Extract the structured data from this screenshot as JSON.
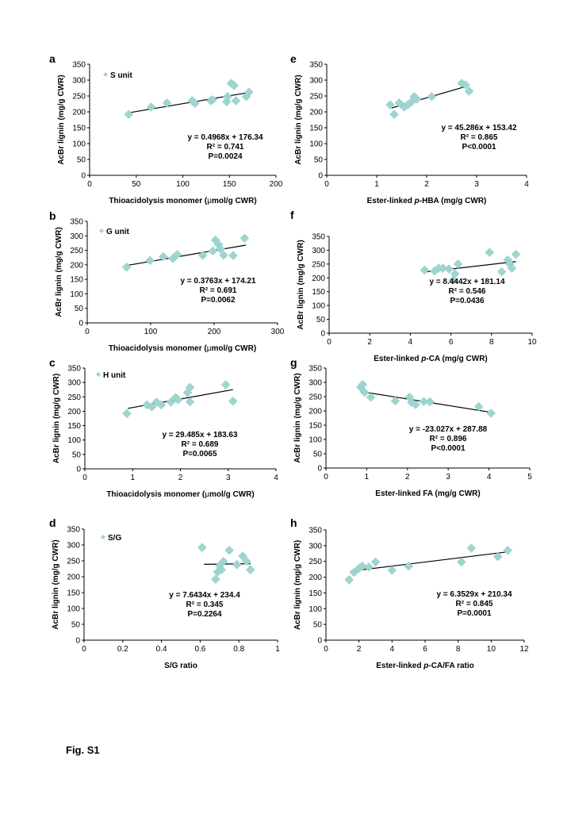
{
  "figure_label": "Fig. S1",
  "chart_data": [
    {
      "panel": "a",
      "type": "scatter",
      "legend": "S unit",
      "xlabel": [
        "Thioacidolysis monomer (",
        "μ",
        "mol/g CWR)"
      ],
      "ylabel": "AcBr lignin (mg/g CWR)",
      "xlim": [
        0,
        200
      ],
      "xticks": [
        "0",
        "50",
        "100",
        "150",
        "200"
      ],
      "ylim": [
        0,
        350
      ],
      "yticks": [
        "0",
        "50",
        "100",
        "150",
        "200",
        "250",
        "300",
        "350"
      ],
      "equation": [
        "y = 0.4968x + 176.34",
        "R² = 0.741",
        "P=0.0024"
      ],
      "trendline": [
        [
          42,
          197
        ],
        [
          173,
          262
        ]
      ],
      "points": [
        [
          42,
          192
        ],
        [
          66,
          215
        ],
        [
          83,
          228
        ],
        [
          110,
          235
        ],
        [
          113,
          227
        ],
        [
          130,
          235
        ],
        [
          132,
          238
        ],
        [
          147,
          232
        ],
        [
          148,
          248
        ],
        [
          152,
          290
        ],
        [
          155,
          283
        ],
        [
          157,
          235
        ],
        [
          168,
          248
        ],
        [
          171,
          262
        ]
      ]
    },
    {
      "panel": "b",
      "type": "scatter",
      "legend": "G unit",
      "xlabel": [
        "Thioacidolysis monomer (",
        "μ",
        "mol/g CWR)"
      ],
      "ylabel": "AcBr lignin (mg/g CWR)",
      "xlim": [
        0,
        300
      ],
      "xticks": [
        "0",
        "100",
        "200",
        "300"
      ],
      "ylim": [
        0,
        350
      ],
      "yticks": [
        "0",
        "50",
        "100",
        "150",
        "200",
        "250",
        "300",
        "350"
      ],
      "equation": [
        "y = 0.3763x + 174.21",
        "R² = 0.691",
        "P=0.0062"
      ],
      "trendline": [
        [
          63,
          198
        ],
        [
          250,
          268
        ]
      ],
      "points": [
        [
          62,
          192
        ],
        [
          99,
          215
        ],
        [
          120,
          228
        ],
        [
          135,
          222
        ],
        [
          142,
          235
        ],
        [
          182,
          233
        ],
        [
          198,
          248
        ],
        [
          202,
          285
        ],
        [
          207,
          270
        ],
        [
          210,
          255
        ],
        [
          215,
          233
        ],
        [
          230,
          232
        ],
        [
          248,
          292
        ]
      ]
    },
    {
      "panel": "c",
      "type": "scatter",
      "legend": "H unit",
      "xlabel": [
        "Thioacidolysis monomer (",
        "μ",
        "mol/g CWR)"
      ],
      "ylabel": "AcBr lignin (mg/g CWR)",
      "xlim": [
        0,
        4
      ],
      "xticks": [
        "0",
        "1",
        "2",
        "3",
        "4"
      ],
      "ylim": [
        0,
        350
      ],
      "yticks": [
        "0",
        "50",
        "100",
        "150",
        "200",
        "250",
        "300",
        "350"
      ],
      "equation": [
        "y = 29.485x + 183.63",
        "R² = 0.689",
        "P=0.0065"
      ],
      "trendline": [
        [
          0.9,
          210
        ],
        [
          3.1,
          275
        ]
      ],
      "points": [
        [
          0.88,
          192
        ],
        [
          1.3,
          222
        ],
        [
          1.4,
          215
        ],
        [
          1.5,
          232
        ],
        [
          1.6,
          222
        ],
        [
          1.8,
          232
        ],
        [
          1.9,
          248
        ],
        [
          1.95,
          240
        ],
        [
          2.15,
          265
        ],
        [
          2.2,
          283
        ],
        [
          2.2,
          233
        ],
        [
          2.95,
          292
        ],
        [
          3.1,
          235
        ]
      ]
    },
    {
      "panel": "d",
      "type": "scatter",
      "legend": "S/G",
      "xlabel": [
        "S/G ratio"
      ],
      "ylabel": "AcBr lignin (mg/g CWR)",
      "xlim": [
        0,
        1
      ],
      "xticks": [
        "0",
        "0.2",
        "0.4",
        "0.6",
        "0.8",
        "1"
      ],
      "ylim": [
        0,
        350
      ],
      "yticks": [
        "0",
        "50",
        "100",
        "150",
        "200",
        "250",
        "300",
        "350"
      ],
      "equation": [
        "y = 7.6434x + 234.4",
        "R² = 0.345",
        "P=0.2264"
      ],
      "trendline": [
        [
          0.62,
          239
        ],
        [
          0.86,
          241
        ]
      ],
      "points": [
        [
          0.61,
          292
        ],
        [
          0.68,
          192
        ],
        [
          0.69,
          215
        ],
        [
          0.7,
          235
        ],
        [
          0.71,
          222
        ],
        [
          0.72,
          248
        ],
        [
          0.75,
          283
        ],
        [
          0.79,
          238
        ],
        [
          0.82,
          265
        ],
        [
          0.84,
          248
        ],
        [
          0.86,
          222
        ]
      ]
    },
    {
      "panel": "e",
      "type": "scatter",
      "xlabel": [
        "Ester-linked ",
        "p",
        "-HBA (mg/g CWR)"
      ],
      "ylabel": "AcBr lignin (mg/g CWR)",
      "xlim": [
        0,
        4
      ],
      "xticks": [
        "0",
        "1",
        "2",
        "3",
        "4"
      ],
      "ylim": [
        0,
        350
      ],
      "yticks": [
        "0",
        "50",
        "100",
        "150",
        "200",
        "250",
        "300",
        "350"
      ],
      "equation": [
        "y = 45.286x + 153.42",
        "R² = 0.865",
        "P<0.0001"
      ],
      "trendline": [
        [
          1.3,
          212
        ],
        [
          2.85,
          283
        ]
      ],
      "points": [
        [
          1.27,
          222
        ],
        [
          1.35,
          192
        ],
        [
          1.45,
          228
        ],
        [
          1.55,
          215
        ],
        [
          1.62,
          222
        ],
        [
          1.7,
          232
        ],
        [
          1.75,
          248
        ],
        [
          1.8,
          240
        ],
        [
          2.1,
          248
        ],
        [
          2.7,
          290
        ],
        [
          2.78,
          285
        ],
        [
          2.85,
          265
        ]
      ]
    },
    {
      "panel": "f",
      "type": "scatter",
      "xlabel": [
        "Ester-linked  ",
        "p",
        "-CA (mg/g CWR)"
      ],
      "ylabel": "AcBr lignin (mg/g CWR)",
      "xlim": [
        0,
        10
      ],
      "xticks": [
        "0",
        "2",
        "4",
        "6",
        "8",
        "10"
      ],
      "ylim": [
        0,
        350
      ],
      "yticks": [
        "0",
        "50",
        "100",
        "150",
        "200",
        "250",
        "300",
        "350"
      ],
      "equation": [
        "y = 8.4442x + 181.14",
        "R² = 0.546",
        "P=0.0436"
      ],
      "trendline": [
        [
          4.7,
          221
        ],
        [
          9.2,
          259
        ]
      ],
      "points": [
        [
          4.7,
          228
        ],
        [
          5.2,
          225
        ],
        [
          5.4,
          235
        ],
        [
          5.6,
          235
        ],
        [
          5.9,
          232
        ],
        [
          6.1,
          192
        ],
        [
          6.2,
          215
        ],
        [
          6.35,
          250
        ],
        [
          7.9,
          292
        ],
        [
          8.5,
          222
        ],
        [
          8.8,
          265
        ],
        [
          8.9,
          250
        ],
        [
          9.0,
          235
        ],
        [
          9.2,
          285
        ]
      ]
    },
    {
      "panel": "g",
      "type": "scatter",
      "xlabel": [
        "Ester-linked  FA (mg/g CWR)"
      ],
      "ylabel": "AcBr lignin (mg/g CWR)",
      "xlim": [
        0,
        5
      ],
      "xticks": [
        "0",
        "1",
        "2",
        "3",
        "4",
        "5"
      ],
      "ylim": [
        0,
        350
      ],
      "yticks": [
        "0",
        "50",
        "100",
        "150",
        "200",
        "250",
        "300",
        "350"
      ],
      "equation": [
        "y = -23.027x + 287.88",
        "R² = 0.896",
        "P<0.0001"
      ],
      "trendline": [
        [
          0.85,
          268
        ],
        [
          4.1,
          194
        ]
      ],
      "points": [
        [
          0.85,
          283
        ],
        [
          0.9,
          292
        ],
        [
          0.95,
          265
        ],
        [
          1.1,
          248
        ],
        [
          1.7,
          235
        ],
        [
          2.05,
          248
        ],
        [
          2.1,
          230
        ],
        [
          2.2,
          222
        ],
        [
          2.4,
          233
        ],
        [
          2.55,
          232
        ],
        [
          3.75,
          215
        ],
        [
          4.05,
          192
        ]
      ]
    },
    {
      "panel": "h",
      "type": "scatter",
      "xlabel": [
        "Ester-linked ",
        "p",
        "-CA/FA ratio"
      ],
      "ylabel": "AcBr lignin (mg/g CWR)",
      "xlim": [
        0,
        12
      ],
      "xticks": [
        "0",
        "2",
        "4",
        "6",
        "8",
        "10",
        "12"
      ],
      "ylim": [
        0,
        350
      ],
      "yticks": [
        "0",
        "50",
        "100",
        "150",
        "200",
        "250",
        "300",
        "350"
      ],
      "equation": [
        "y = 6.3529x + 210.34",
        "R² = 0.845",
        "P=0.0001"
      ],
      "trendline": [
        [
          1.5,
          219
        ],
        [
          11.1,
          281
        ]
      ],
      "points": [
        [
          1.4,
          192
        ],
        [
          1.7,
          215
        ],
        [
          2.0,
          228
        ],
        [
          2.2,
          235
        ],
        [
          2.6,
          232
        ],
        [
          3.0,
          248
        ],
        [
          4.0,
          222
        ],
        [
          5.0,
          235
        ],
        [
          8.2,
          248
        ],
        [
          8.8,
          292
        ],
        [
          10.4,
          265
        ],
        [
          11.0,
          285
        ]
      ]
    }
  ]
}
